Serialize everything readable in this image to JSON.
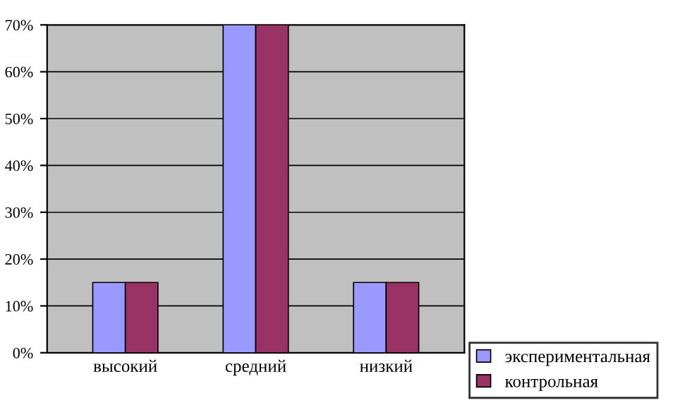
{
  "chart_data": {
    "type": "bar",
    "categories": [
      "высокий",
      "средний",
      "низкий"
    ],
    "series": [
      {
        "name": "экспериментальная",
        "color": "#9999ff",
        "values": [
          15,
          70,
          15
        ]
      },
      {
        "name": "контрольная",
        "color": "#993366",
        "values": [
          15,
          70,
          15
        ]
      }
    ],
    "ylim": [
      0,
      70
    ],
    "yticks": [
      {
        "value": 0,
        "label": "0%"
      },
      {
        "value": 10,
        "label": "10%"
      },
      {
        "value": 20,
        "label": "20%"
      },
      {
        "value": 30,
        "label": "30%"
      },
      {
        "value": 40,
        "label": "40%"
      },
      {
        "value": 50,
        "label": "50%"
      },
      {
        "value": 60,
        "label": "60%"
      },
      {
        "value": 70,
        "label": "70%"
      }
    ],
    "grid": "y",
    "legend": "bottom right"
  }
}
